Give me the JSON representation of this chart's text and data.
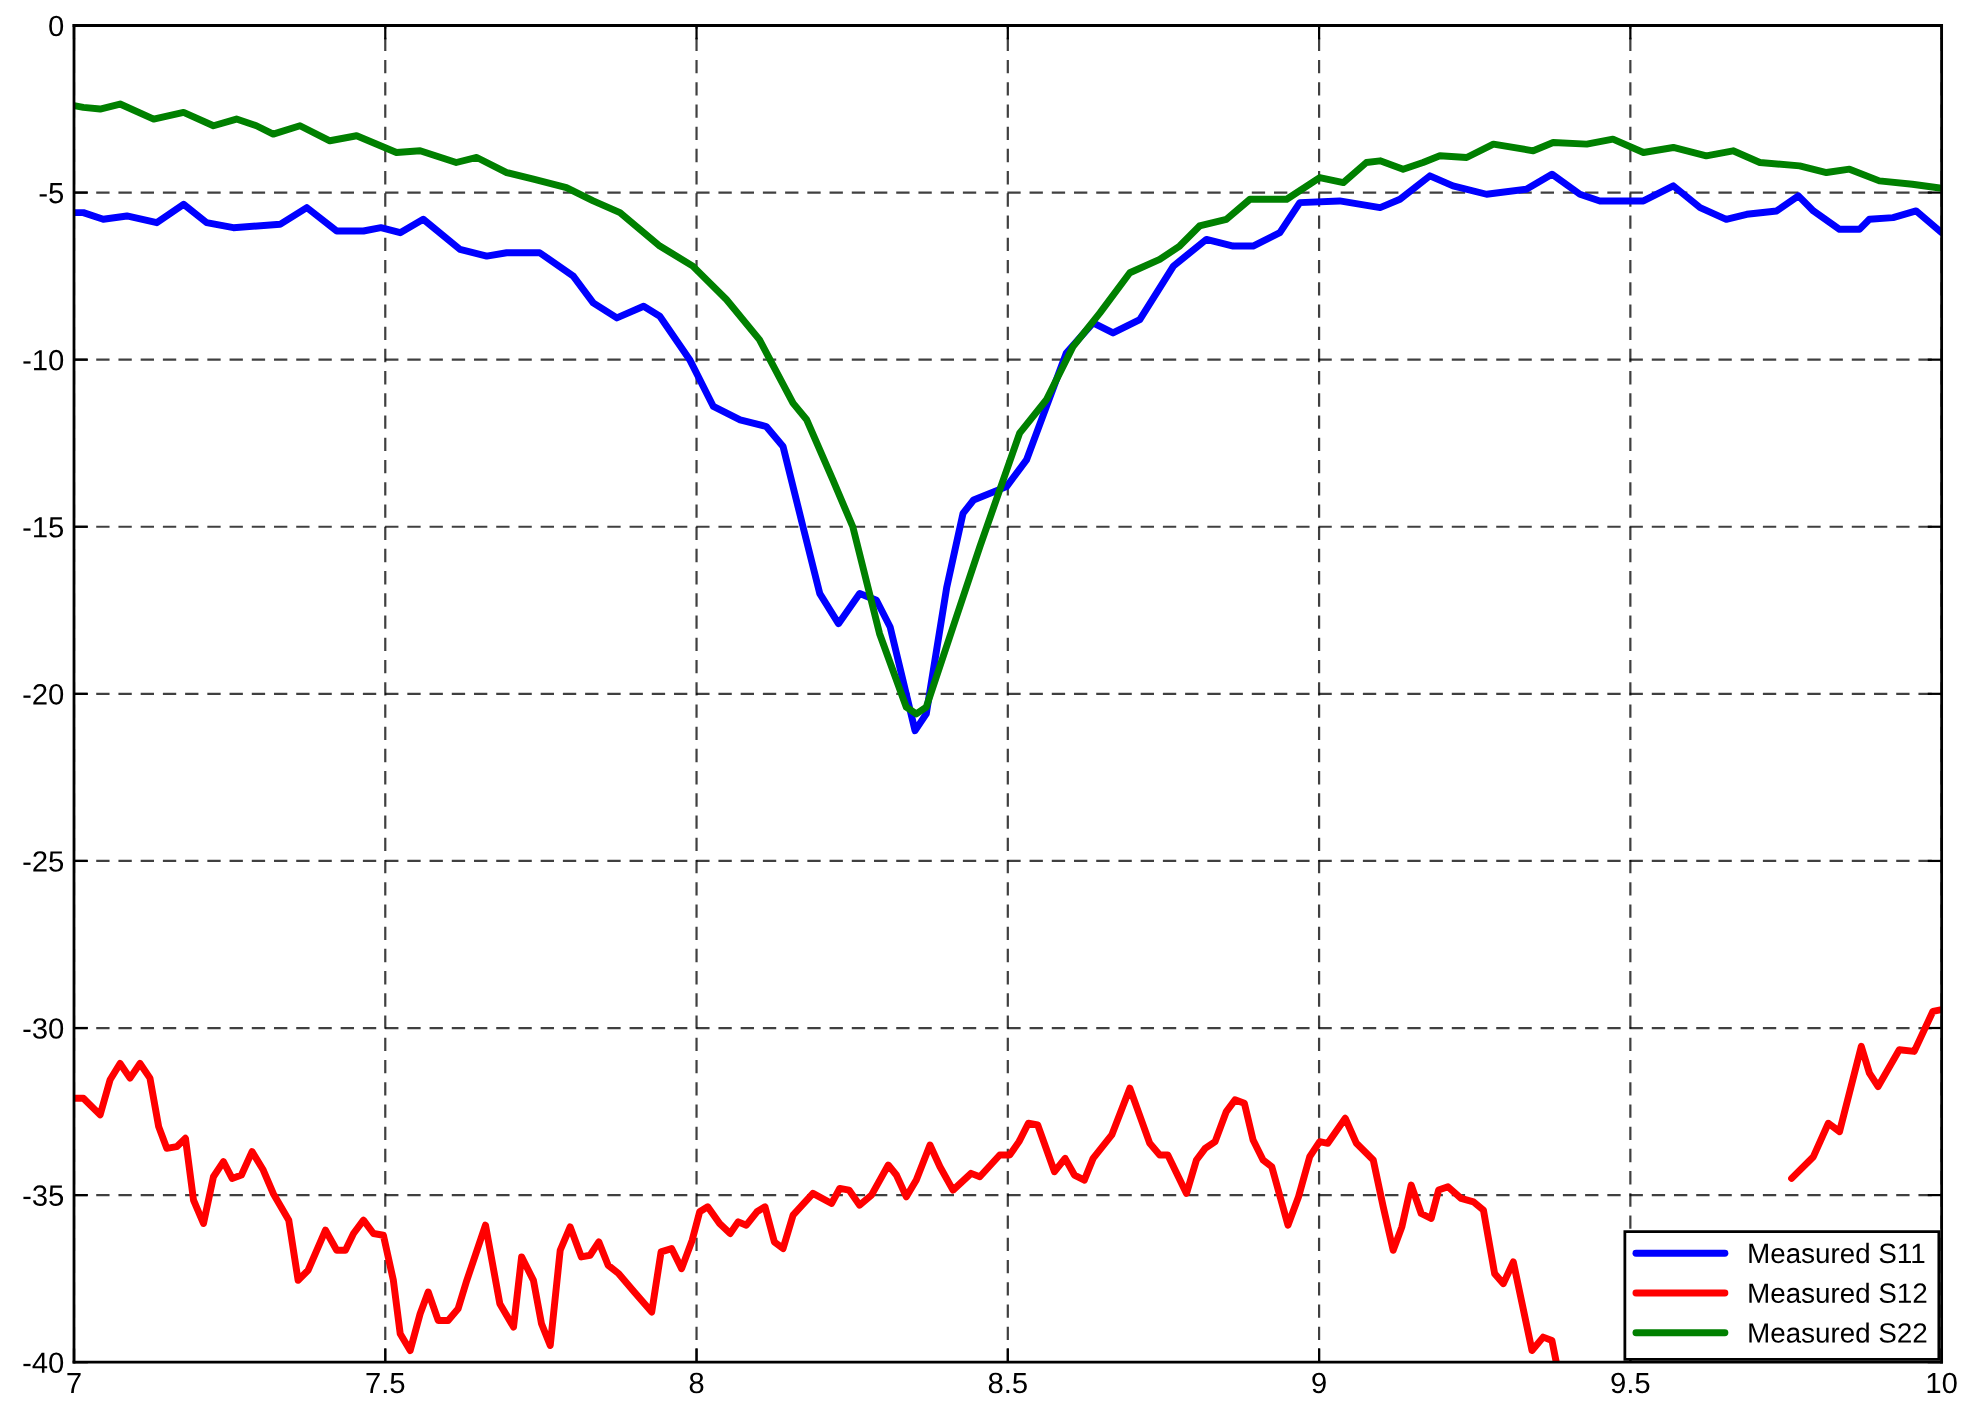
{
  "chart_data": {
    "type": "line",
    "xlim": [
      7,
      10
    ],
    "ylim": [
      -40,
      0
    ],
    "xticks": [
      7,
      7.5,
      8,
      8.5,
      9,
      9.5,
      10
    ],
    "yticks": [
      -40,
      -35,
      -30,
      -25,
      -20,
      -15,
      -10,
      -5,
      0
    ],
    "grid": true,
    "legend": "bottom right",
    "series": [
      {
        "name": "Measured S11",
        "color": "#0000ff",
        "x": [
          7.0,
          7.015,
          7.047,
          7.085,
          7.133,
          7.176,
          7.213,
          7.256,
          7.331,
          7.374,
          7.422,
          7.465,
          7.493,
          7.524,
          7.561,
          7.62,
          7.663,
          7.695,
          7.748,
          7.802,
          7.834,
          7.872,
          7.915,
          7.941,
          7.989,
          8.027,
          8.07,
          8.112,
          8.139,
          8.171,
          8.198,
          8.228,
          8.262,
          8.289,
          8.311,
          8.351,
          8.369,
          8.402,
          8.428,
          8.445,
          8.498,
          8.53,
          8.562,
          8.594,
          8.637,
          8.669,
          8.712,
          8.766,
          8.819,
          8.862,
          8.894,
          8.937,
          8.969,
          9.033,
          9.098,
          9.13,
          9.178,
          9.215,
          9.269,
          9.333,
          9.374,
          9.419,
          9.451,
          9.521,
          9.569,
          9.612,
          9.654,
          9.687,
          9.735,
          9.77,
          9.794,
          9.836,
          9.868,
          9.884,
          9.922,
          9.959,
          10.0
        ],
        "values": [
          -5.6,
          -5.6,
          -5.8,
          -5.7,
          -5.9,
          -5.35,
          -5.9,
          -6.05,
          -5.95,
          -5.45,
          -6.15,
          -6.15,
          -6.05,
          -6.2,
          -5.8,
          -6.7,
          -6.9,
          -6.8,
          -6.8,
          -7.5,
          -8.3,
          -8.75,
          -8.4,
          -8.7,
          -10.0,
          -11.4,
          -11.8,
          -12.0,
          -12.6,
          -15.0,
          -17.0,
          -17.9,
          -17.0,
          -17.2,
          -18.0,
          -21.1,
          -20.6,
          -16.8,
          -14.6,
          -14.2,
          -13.8,
          -13.0,
          -11.4,
          -9.8,
          -8.9,
          -9.2,
          -8.8,
          -7.2,
          -6.4,
          -6.6,
          -6.6,
          -6.2,
          -5.3,
          -5.25,
          -5.45,
          -5.2,
          -4.5,
          -4.8,
          -5.05,
          -4.9,
          -4.45,
          -5.05,
          -5.25,
          -5.25,
          -4.8,
          -5.45,
          -5.8,
          -5.65,
          -5.55,
          -5.1,
          -5.55,
          -6.1,
          -6.1,
          -5.8,
          -5.75,
          -5.55,
          -6.2
        ]
      },
      {
        "name": "Measured S12",
        "color": "#ff0000",
        "x": [
          7.0,
          7.015,
          7.042,
          7.058,
          7.074,
          7.09,
          7.106,
          7.122,
          7.136,
          7.149,
          7.165,
          7.179,
          7.192,
          7.208,
          7.224,
          7.24,
          7.254,
          7.269,
          7.286,
          7.304,
          7.32,
          7.345,
          7.36,
          7.376,
          7.404,
          7.422,
          7.436,
          7.449,
          7.465,
          7.481,
          7.497,
          7.513,
          7.524,
          7.54,
          7.556,
          7.569,
          7.585,
          7.601,
          7.617,
          7.631,
          7.661,
          7.684,
          7.706,
          7.719,
          7.738,
          7.751,
          7.765,
          7.781,
          7.797,
          7.815,
          7.829,
          7.843,
          7.858,
          7.875,
          7.9,
          7.928,
          7.943,
          7.96,
          7.976,
          7.993,
          8.005,
          8.018,
          8.037,
          8.054,
          8.067,
          8.08,
          8.097,
          8.11,
          8.125,
          8.139,
          8.155,
          8.187,
          8.217,
          8.23,
          8.245,
          8.262,
          8.281,
          8.308,
          8.321,
          8.337,
          8.353,
          8.375,
          8.391,
          8.412,
          8.441,
          8.455,
          8.487,
          8.503,
          8.518,
          8.533,
          8.548,
          8.575,
          8.592,
          8.607,
          8.623,
          8.637,
          8.667,
          8.696,
          8.728,
          8.744,
          8.757,
          8.787,
          8.803,
          8.817,
          8.833,
          8.851,
          8.865,
          8.88,
          8.894,
          8.91,
          8.924,
          8.95,
          8.967,
          8.985,
          9.001,
          9.014,
          9.042,
          9.06,
          9.087,
          9.103,
          9.119,
          9.133,
          9.148,
          9.164,
          9.18,
          9.192,
          9.207,
          9.228,
          9.248,
          9.264,
          9.282,
          9.296,
          9.312,
          9.342,
          9.36,
          9.374,
          9.381,
          9.5,
          9.759,
          9.794,
          9.818,
          9.836,
          9.871,
          9.884,
          9.898,
          9.932,
          9.956,
          9.986,
          10.0
        ],
        "values": [
          -32.1,
          -32.1,
          -32.6,
          -31.55,
          -31.06,
          -31.5,
          -31.06,
          -31.5,
          -32.95,
          -33.6,
          -33.55,
          -33.3,
          -35.15,
          -35.85,
          -34.45,
          -34.0,
          -34.5,
          -34.4,
          -33.7,
          -34.25,
          -34.95,
          -35.75,
          -37.55,
          -37.25,
          -36.05,
          -36.65,
          -36.65,
          -36.15,
          -35.75,
          -36.15,
          -36.2,
          -37.55,
          -39.15,
          -39.65,
          -38.55,
          -37.9,
          -38.75,
          -38.75,
          -38.4,
          -37.55,
          -35.9,
          -38.25,
          -38.95,
          -36.85,
          -37.55,
          -38.85,
          -39.5,
          -36.65,
          -35.95,
          -36.85,
          -36.8,
          -36.4,
          -37.1,
          -37.35,
          -37.9,
          -38.5,
          -36.7,
          -36.6,
          -37.2,
          -36.35,
          -35.5,
          -35.35,
          -35.85,
          -36.15,
          -35.8,
          -35.9,
          -35.5,
          -35.35,
          -36.4,
          -36.6,
          -35.6,
          -34.95,
          -35.25,
          -34.8,
          -34.85,
          -35.3,
          -35.0,
          -34.1,
          -34.4,
          -35.05,
          -34.55,
          -33.5,
          -34.15,
          -34.85,
          -34.35,
          -34.45,
          -33.8,
          -33.8,
          -33.4,
          -32.85,
          -32.9,
          -34.3,
          -33.9,
          -34.4,
          -34.55,
          -33.9,
          -33.2,
          -31.8,
          -33.45,
          -33.8,
          -33.8,
          -34.95,
          -33.95,
          -33.6,
          -33.4,
          -32.5,
          -32.15,
          -32.25,
          -33.35,
          -33.95,
          -34.15,
          -35.9,
          -35.05,
          -33.85,
          -33.4,
          -33.45,
          -32.7,
          -33.45,
          -33.95,
          -35.35,
          -36.65,
          -35.95,
          -34.7,
          -35.55,
          -35.7,
          -34.85,
          -34.75,
          -35.1,
          -35.2,
          -35.45,
          -37.35,
          -37.65,
          -37.0,
          -39.65,
          -39.25,
          -39.35,
          -40.0,
          null,
          -34.5,
          -33.85,
          -32.85,
          -33.1,
          -30.55,
          -31.35,
          -31.75,
          -30.65,
          -30.7,
          -29.5,
          -29.45
        ]
      },
      {
        "name": "Measured S22",
        "color": "#008000",
        "x": [
          7.0,
          7.015,
          7.042,
          7.074,
          7.128,
          7.176,
          7.224,
          7.261,
          7.293,
          7.32,
          7.363,
          7.411,
          7.454,
          7.518,
          7.556,
          7.614,
          7.647,
          7.695,
          7.738,
          7.791,
          7.834,
          7.877,
          7.941,
          7.994,
          8.048,
          8.101,
          8.155,
          8.177,
          8.219,
          8.251,
          8.294,
          8.337,
          8.353,
          8.369,
          8.412,
          8.455,
          8.519,
          8.562,
          8.605,
          8.648,
          8.696,
          8.744,
          8.776,
          8.808,
          8.851,
          8.889,
          8.948,
          9.001,
          9.039,
          9.076,
          9.098,
          9.135,
          9.167,
          9.194,
          9.237,
          9.28,
          9.344,
          9.376,
          9.43,
          9.472,
          9.521,
          9.569,
          9.622,
          9.665,
          9.708,
          9.772,
          9.815,
          9.852,
          9.9,
          9.953,
          10.0
        ],
        "values": [
          -2.4,
          -2.45,
          -2.5,
          -2.35,
          -2.8,
          -2.6,
          -3.0,
          -2.8,
          -3.0,
          -3.25,
          -3.0,
          -3.45,
          -3.3,
          -3.8,
          -3.75,
          -4.1,
          -3.95,
          -4.4,
          -4.6,
          -4.85,
          -5.25,
          -5.6,
          -6.6,
          -7.2,
          -8.2,
          -9.4,
          -11.3,
          -11.8,
          -13.6,
          -15.0,
          -18.2,
          -20.4,
          -20.6,
          -20.4,
          -18.0,
          -15.6,
          -12.2,
          -11.2,
          -9.6,
          -8.6,
          -7.4,
          -7.0,
          -6.6,
          -6.0,
          -5.8,
          -5.2,
          -5.2,
          -4.55,
          -4.7,
          -4.1,
          -4.05,
          -4.3,
          -4.1,
          -3.9,
          -3.95,
          -3.55,
          -3.75,
          -3.5,
          -3.55,
          -3.4,
          -3.8,
          -3.65,
          -3.9,
          -3.75,
          -4.1,
          -4.2,
          -4.4,
          -4.3,
          -4.65,
          -4.75,
          -4.87
        ]
      }
    ]
  }
}
